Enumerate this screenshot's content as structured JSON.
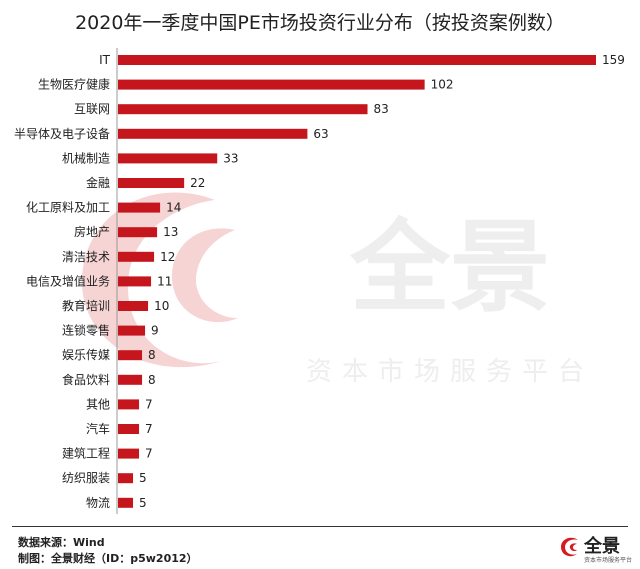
{
  "title": "2020年一季度中国PE市场投资行业分布（按投资案例数）",
  "watermark": {
    "main": "全景",
    "sub": "资本市场服务平台"
  },
  "footer": {
    "source": "数据来源：Wind",
    "maker": "制图：全景财经（ID：p5w2012）"
  },
  "logo": {
    "name": "全景",
    "sub": "资本市场服务平台"
  },
  "colors": {
    "bar": "#c4161c",
    "watermark_swirl": "#f6d4d4",
    "logo_red": "#d71920"
  },
  "chart_data": {
    "type": "bar",
    "orientation": "horizontal",
    "title": "2020年一季度中国PE市场投资行业分布（按投资案例数）",
    "categories": [
      "IT",
      "生物医疗健康",
      "互联网",
      "半导体及电子设备",
      "机械制造",
      "金融",
      "化工原料及加工",
      "房地产",
      "清洁技术",
      "电信及增值业务",
      "教育培训",
      "连锁零售",
      "娱乐传媒",
      "食品饮料",
      "其他",
      "汽车",
      "建筑工程",
      "纺织服装",
      "物流"
    ],
    "values": [
      159,
      102,
      83,
      63,
      33,
      22,
      14,
      13,
      12,
      11,
      10,
      9,
      8,
      8,
      7,
      7,
      7,
      5,
      5
    ],
    "xlim": [
      0,
      159
    ],
    "grid": false,
    "legend": "none"
  }
}
